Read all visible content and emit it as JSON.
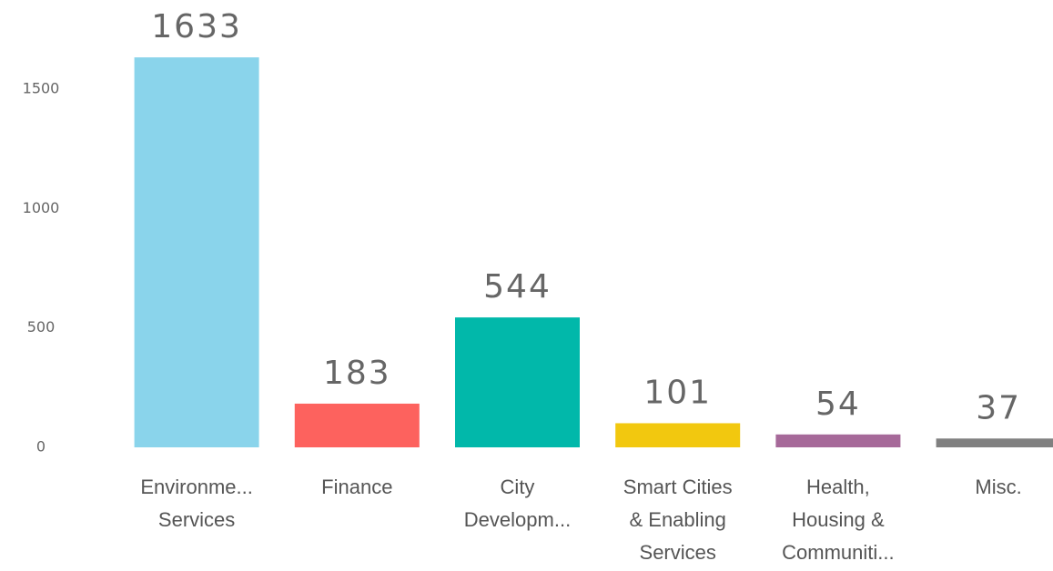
{
  "chart_data": {
    "type": "bar",
    "categories": [
      [
        "Environme...",
        "Services"
      ],
      [
        "Finance"
      ],
      [
        "City",
        "Developm..."
      ],
      [
        "Smart Cities",
        "& Enabling",
        "Services"
      ],
      [
        "Health,",
        "Housing &",
        "Communiti..."
      ],
      [
        "Misc."
      ]
    ],
    "values": [
      1633,
      183,
      544,
      101,
      54,
      37
    ],
    "colors": [
      "#8ad4eb",
      "#fd625e",
      "#01b8aa",
      "#f2c80f",
      "#a66999",
      "#808080"
    ],
    "ylim": [
      0,
      1700
    ],
    "yticks": [
      0,
      500,
      1000,
      1500
    ],
    "grid": false
  }
}
